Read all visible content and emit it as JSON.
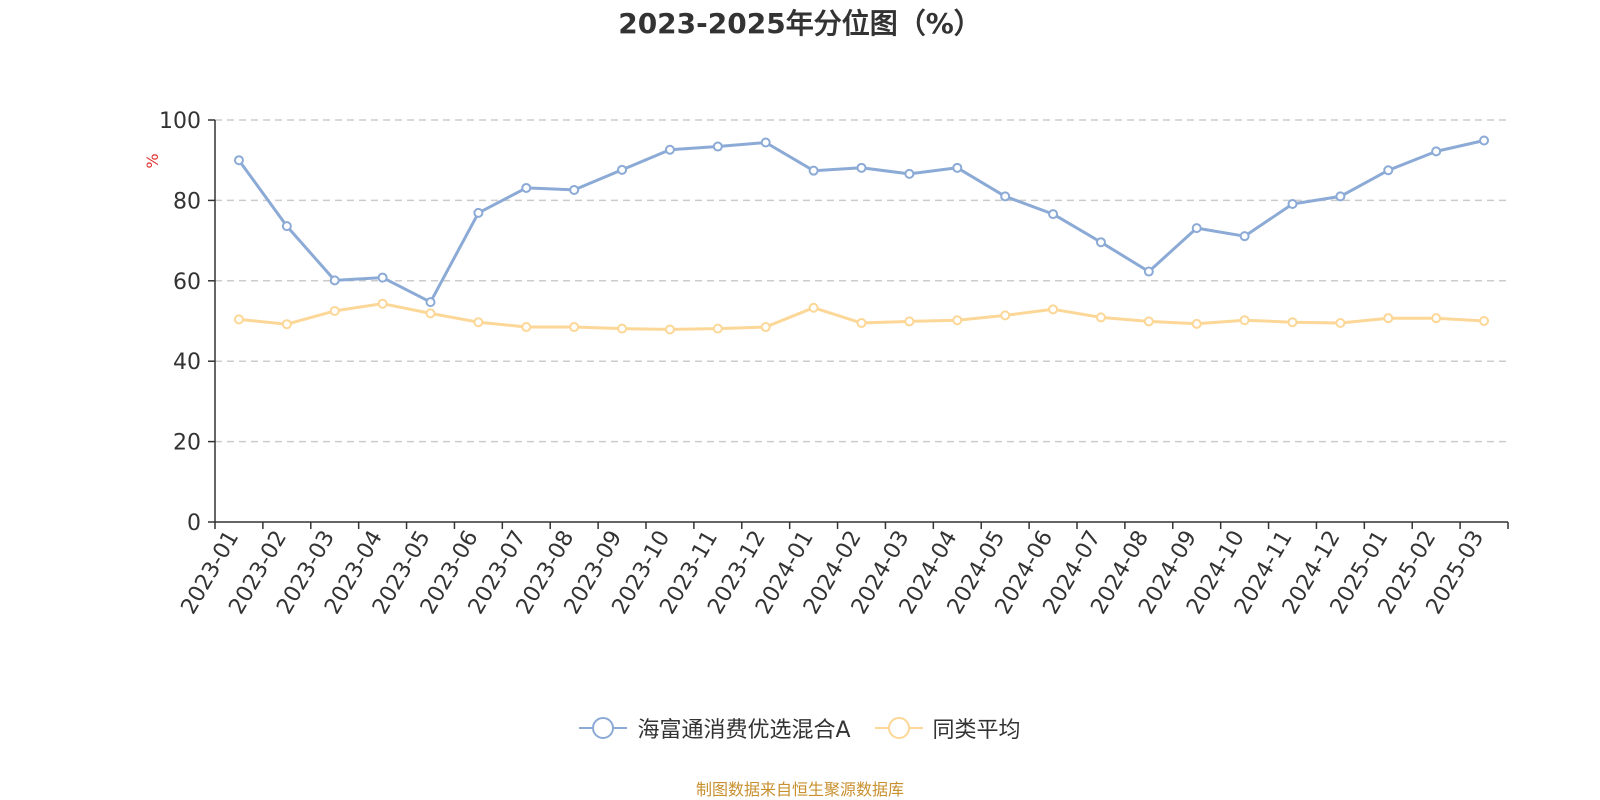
{
  "chart_data": {
    "type": "line",
    "title": "2023-2025年分位图（%）",
    "ylabel": "%",
    "xlabel": "",
    "ylim": [
      0,
      100
    ],
    "yticks": [
      0,
      20,
      40,
      60,
      80,
      100
    ],
    "grid": true,
    "legend_position": "bottom-center",
    "categories": [
      "2023-01",
      "2023-02",
      "2023-03",
      "2023-04",
      "2023-05",
      "2023-06",
      "2023-07",
      "2023-08",
      "2023-09",
      "2023-10",
      "2023-11",
      "2023-12",
      "2024-01",
      "2024-02",
      "2024-03",
      "2024-04",
      "2024-05",
      "2024-06",
      "2024-07",
      "2024-08",
      "2024-09",
      "2024-10",
      "2024-11",
      "2024-12",
      "2025-01",
      "2025-02",
      "2025-03"
    ],
    "series": [
      {
        "name": "海富通消费优选混合A",
        "color": "#8caad6",
        "values": [
          90.0,
          73.6,
          60.1,
          60.8,
          54.7,
          76.9,
          83.1,
          82.6,
          87.6,
          92.6,
          93.4,
          94.4,
          87.4,
          88.1,
          86.6,
          88.1,
          81.0,
          76.6,
          69.6,
          62.3,
          73.1,
          71.1,
          79.1,
          81.0,
          87.5,
          92.2,
          94.9
        ]
      },
      {
        "name": "同类平均",
        "color": "#fcd797",
        "values": [
          50.4,
          49.2,
          52.5,
          54.3,
          51.9,
          49.7,
          48.5,
          48.5,
          48.1,
          47.9,
          48.1,
          48.5,
          53.3,
          49.5,
          49.9,
          50.2,
          51.4,
          52.9,
          50.9,
          49.9,
          49.3,
          50.2,
          49.7,
          49.5,
          50.7,
          50.7,
          50.0
        ]
      }
    ],
    "source": "制图数据来自恒生聚源数据库",
    "colors": {
      "axis": "#333333",
      "grid": "#cccccc",
      "ylabel": "#e03030",
      "source": "#c8902f"
    }
  }
}
